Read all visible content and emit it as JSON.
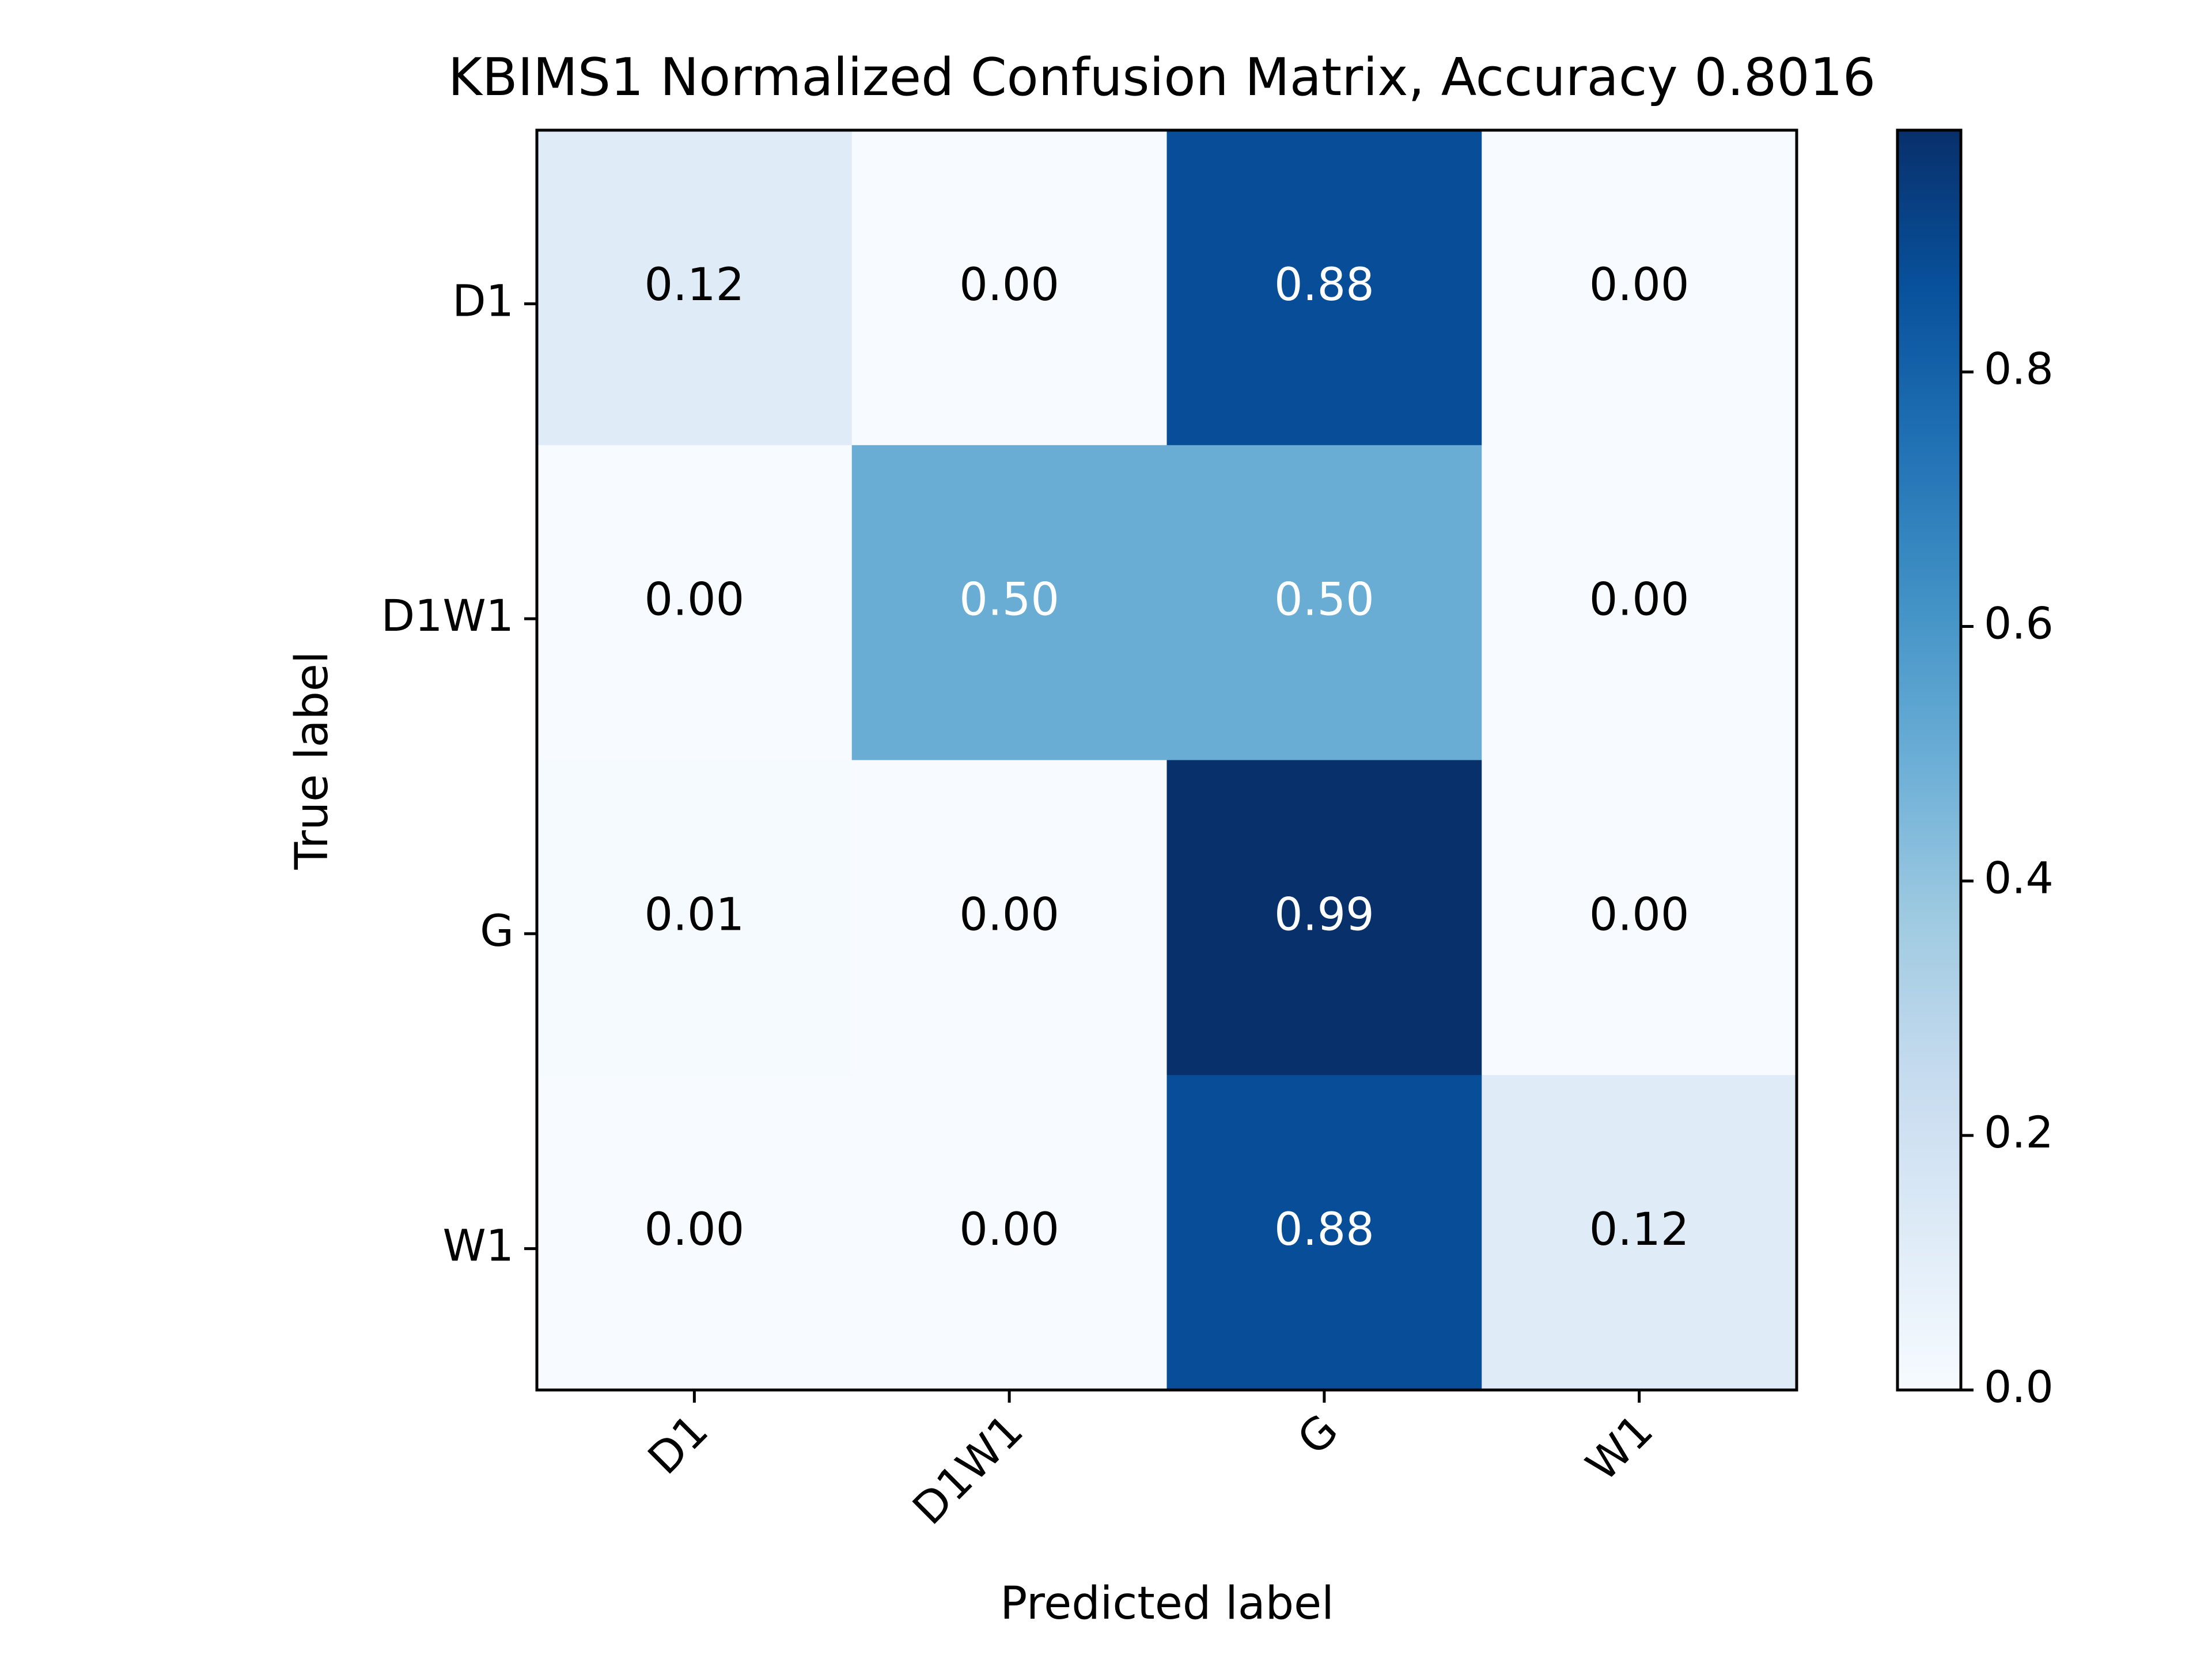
{
  "chart_data": {
    "type": "heatmap",
    "title": "KBIMS1 Normalized Confusion Matrix, Accuracy 0.8016",
    "xlabel": "Predicted label",
    "ylabel": "True label",
    "x_categories": [
      "D1",
      "D1W1",
      "G",
      "W1"
    ],
    "y_categories": [
      "D1",
      "D1W1",
      "G",
      "W1"
    ],
    "matrix": [
      [
        0.12,
        0.0,
        0.88,
        0.0
      ],
      [
        0.0,
        0.5,
        0.5,
        0.0
      ],
      [
        0.01,
        0.0,
        0.99,
        0.0
      ],
      [
        0.0,
        0.0,
        0.88,
        0.12
      ]
    ],
    "cell_labels": [
      [
        "0.12",
        "0.00",
        "0.88",
        "0.00"
      ],
      [
        "0.00",
        "0.50",
        "0.50",
        "0.00"
      ],
      [
        "0.01",
        "0.00",
        "0.99",
        "0.00"
      ],
      [
        "0.00",
        "0.00",
        "0.88",
        "0.12"
      ]
    ],
    "colormap": "Blues",
    "colorbar": {
      "range": [
        0.0,
        0.99
      ],
      "ticks": [
        0.0,
        0.2,
        0.4,
        0.6,
        0.8
      ],
      "tick_labels": [
        "0.0",
        "0.2",
        "0.4",
        "0.6",
        "0.8"
      ]
    },
    "grid": false,
    "legend": "none"
  }
}
